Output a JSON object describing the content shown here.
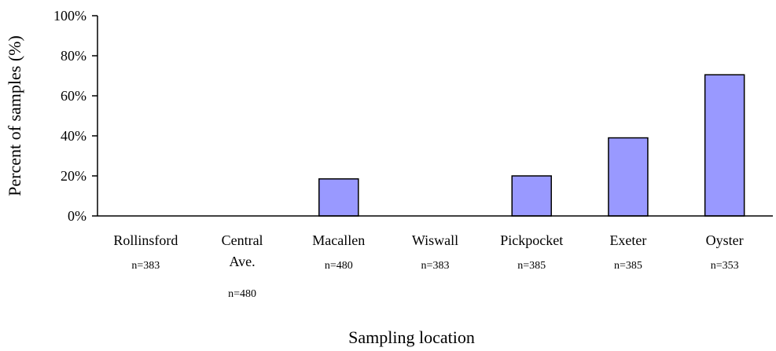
{
  "chart_data": {
    "type": "bar",
    "categories": [
      {
        "label_lines": [
          "Rollinsford"
        ],
        "n": "n=383"
      },
      {
        "label_lines": [
          "Central",
          "Ave."
        ],
        "n": "n=480"
      },
      {
        "label_lines": [
          "Macallen"
        ],
        "n": "n=480"
      },
      {
        "label_lines": [
          "Wiswall"
        ],
        "n": "n=383"
      },
      {
        "label_lines": [
          "Pickpocket"
        ],
        "n": "n=385"
      },
      {
        "label_lines": [
          "Exeter"
        ],
        "n": "n=385"
      },
      {
        "label_lines": [
          "Oyster"
        ],
        "n": "n=353"
      }
    ],
    "values": [
      0,
      0,
      18.5,
      0,
      20,
      39,
      70.5
    ],
    "ylim": [
      0,
      100
    ],
    "yticks": [
      "0%",
      "20%",
      "40%",
      "60%",
      "80%",
      "100%"
    ],
    "xlabel": "Sampling location",
    "ylabel": "Percent of samples (%)",
    "bar_color": "#9999ff",
    "grid": false,
    "legend": "none"
  }
}
